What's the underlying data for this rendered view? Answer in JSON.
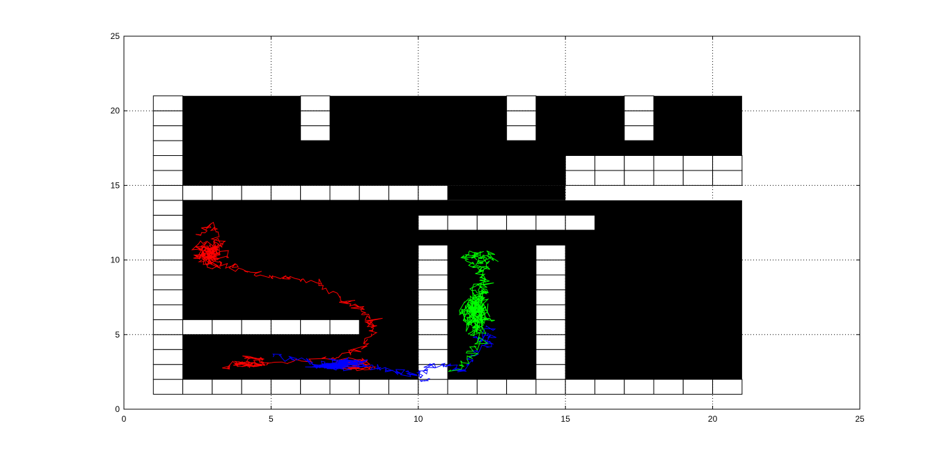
{
  "chart_data": {
    "type": "scatter",
    "title": "",
    "xlabel": "",
    "ylabel": "",
    "xlim": [
      0,
      25
    ],
    "ylim": [
      0,
      25
    ],
    "xticks": [
      "0",
      "5",
      "10",
      "15",
      "20",
      "25"
    ],
    "yticks": [
      "0",
      "5",
      "10",
      "15",
      "20",
      "25"
    ],
    "grid": true,
    "legend": "none",
    "colors": {
      "background": "#ffffff",
      "obstacle": "#000000",
      "free_cell": "#ffffff",
      "grid": "#000000",
      "trajectory_1": "#ff0000",
      "trajectory_2": "#0000ff",
      "trajectory_3": "#00ff00"
    },
    "map": {
      "extent_x": [
        1,
        21
      ],
      "extent_y": [
        1,
        21
      ],
      "cell_size": 1,
      "black_regions": [
        {
          "x": [
            2,
            21
          ],
          "y": [
            15,
            21
          ]
        },
        {
          "x": [
            11,
            15
          ],
          "y": [
            14,
            15
          ]
        },
        {
          "x": [
            2,
            21
          ],
          "y": [
            2,
            14
          ]
        }
      ],
      "white_cells": [
        {
          "x": [
            1,
            2
          ],
          "y": [
            1,
            21
          ]
        },
        {
          "x": [
            2,
            21
          ],
          "y": [
            1,
            2
          ]
        },
        {
          "x": [
            2,
            11
          ],
          "y": [
            14,
            15
          ]
        },
        {
          "x": [
            15,
            21
          ],
          "y": [
            15,
            17
          ]
        },
        {
          "x": [
            6,
            7
          ],
          "y": [
            18,
            21
          ]
        },
        {
          "x": [
            13,
            14
          ],
          "y": [
            18,
            21
          ]
        },
        {
          "x": [
            17,
            18
          ],
          "y": [
            18,
            21
          ]
        },
        {
          "x": [
            10,
            16
          ],
          "y": [
            12,
            13
          ]
        },
        {
          "x": [
            10,
            11
          ],
          "y": [
            2,
            11
          ]
        },
        {
          "x": [
            14,
            15
          ],
          "y": [
            2,
            11
          ]
        },
        {
          "x": [
            2,
            8
          ],
          "y": [
            5,
            6
          ]
        }
      ]
    },
    "trajectories": [
      {
        "color": "red",
        "anchors": [
          [
            2.5,
            11.8
          ],
          [
            3.0,
            12.4
          ],
          [
            3.3,
            11.2
          ],
          [
            2.8,
            10.2
          ],
          [
            3.6,
            9.6
          ],
          [
            4.5,
            9.0
          ],
          [
            5.5,
            8.8
          ],
          [
            6.5,
            8.6
          ],
          [
            7.5,
            7.2
          ],
          [
            8.0,
            6.8
          ],
          [
            8.4,
            6.0
          ],
          [
            8.5,
            5.2
          ],
          [
            8.0,
            4.0
          ],
          [
            7.0,
            3.4
          ],
          [
            5.0,
            3.1
          ],
          [
            4.0,
            3.0
          ],
          [
            3.5,
            2.8
          ]
        ],
        "clusters": [
          {
            "center": [
              3.0,
              10.4
            ],
            "spread": [
              0.6,
              0.9
            ],
            "count": 160
          },
          {
            "center": [
              4.5,
              3.1
            ],
            "spread": [
              0.6,
              0.35
            ],
            "count": 70
          },
          {
            "center": [
              7.8,
              3.0
            ],
            "spread": [
              0.8,
              0.45
            ],
            "count": 90
          }
        ]
      },
      {
        "color": "blue",
        "anchors": [
          [
            5.0,
            3.6
          ],
          [
            6.0,
            3.3
          ],
          [
            7.0,
            3.0
          ],
          [
            8.0,
            3.2
          ],
          [
            8.6,
            2.8
          ],
          [
            9.3,
            2.5
          ],
          [
            10.0,
            2.3
          ],
          [
            10.4,
            2.8
          ],
          [
            11.0,
            2.9
          ],
          [
            11.5,
            2.6
          ],
          [
            12.0,
            3.8
          ],
          [
            12.5,
            4.5
          ],
          [
            12.3,
            5.5
          ]
        ],
        "clusters": [
          {
            "center": [
              7.3,
              3.0
            ],
            "spread": [
              1.0,
              0.35
            ],
            "count": 200
          },
          {
            "center": [
              10.3,
              1.9
            ],
            "spread": [
              0.15,
              0.15
            ],
            "count": 15
          },
          {
            "center": [
              12.2,
              4.6
            ],
            "spread": [
              0.3,
              0.4
            ],
            "count": 25
          }
        ]
      },
      {
        "color": "green",
        "anchors": [
          [
            11.2,
            2.6
          ],
          [
            11.8,
            3.5
          ],
          [
            12.0,
            4.5
          ],
          [
            11.9,
            6.0
          ],
          [
            12.0,
            7.5
          ],
          [
            12.3,
            8.5
          ],
          [
            12.0,
            9.5
          ],
          [
            11.5,
            10.1
          ],
          [
            12.1,
            10.6
          ],
          [
            12.6,
            10.2
          ],
          [
            12.1,
            9.2
          ],
          [
            12.0,
            7.8
          ],
          [
            11.8,
            6.5
          ],
          [
            12.0,
            5.2
          ]
        ],
        "clusters": [
          {
            "center": [
              12.0,
              6.6
            ],
            "spread": [
              0.45,
              1.2
            ],
            "count": 260
          },
          {
            "center": [
              12.0,
              10.0
            ],
            "spread": [
              0.35,
              0.35
            ],
            "count": 30
          }
        ]
      }
    ]
  }
}
